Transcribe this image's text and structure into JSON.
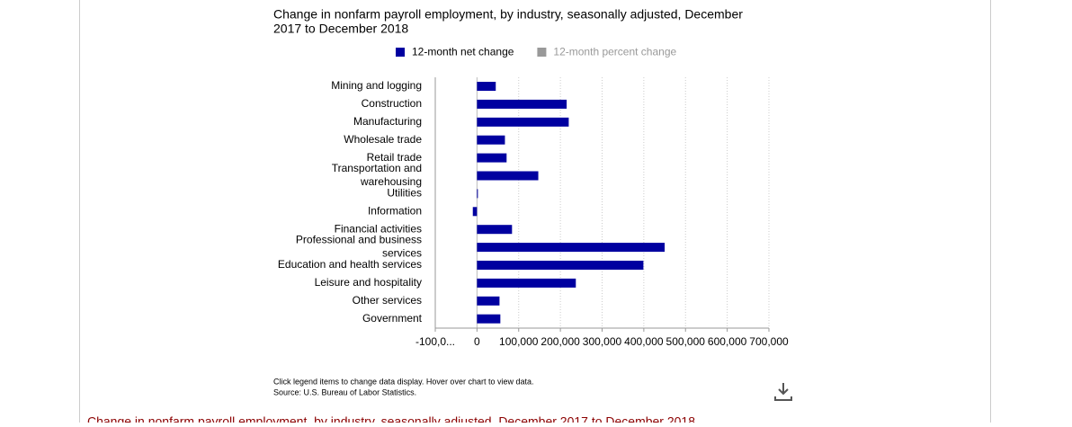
{
  "chart_data": {
    "type": "barh",
    "title_lines": [
      "Change in nonfarm payroll employment, by industry, seasonally adjusted, December",
      "2017 to December 2018"
    ],
    "categories": [
      "Mining and logging",
      "Construction",
      "Manufacturing",
      "Wholesale trade",
      "Retail trade",
      "Transportation and warehousing",
      "Utilities",
      "Information",
      "Financial activities",
      "Professional and business services",
      "Education and health services",
      "Leisure and hospitality",
      "Other services",
      "Government"
    ],
    "series": [
      {
        "name": "12-month net change",
        "color": "#0000a0",
        "values": [
          45000,
          215000,
          220000,
          67000,
          71000,
          147000,
          1000,
          -10000,
          84000,
          450000,
          399000,
          237000,
          54000,
          56000
        ]
      },
      {
        "name": "12-month percent change",
        "color": "#999999",
        "visible": false
      }
    ],
    "xlim": [
      -100000,
      700000
    ],
    "xticks": [
      {
        "value": -100000,
        "label": "-100,0..."
      },
      0,
      {
        "value": 100000,
        "label": "100,000"
      },
      {
        "value": 200000,
        "label": "200,000"
      },
      {
        "value": 300000,
        "label": "300,000"
      },
      {
        "value": 400000,
        "label": "400,000"
      },
      {
        "value": 500000,
        "label": "500,000"
      },
      {
        "value": 600000,
        "label": "600,000"
      },
      {
        "value": 700000,
        "label": "700,000"
      }
    ],
    "grid": true,
    "notes": [
      "Click legend items to change data display. Hover over chart to view data.",
      "Source: U.S. Bureau of Labor Statistics."
    ]
  },
  "next_heading": "Change in nonfarm payroll employment, by industry, seasonally adjusted, December 2017 to December 2018"
}
